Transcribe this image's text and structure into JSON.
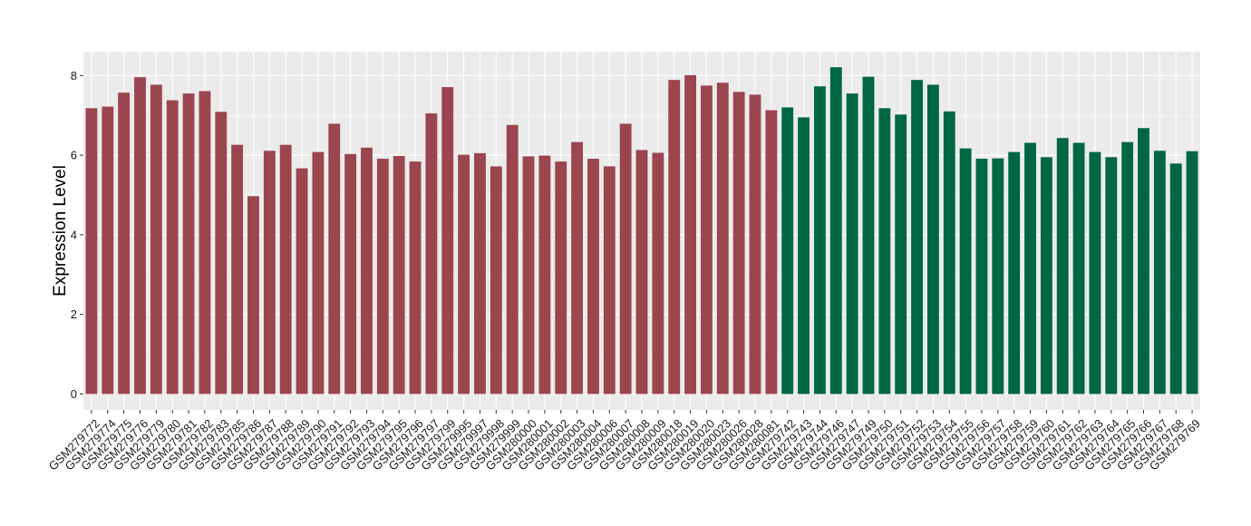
{
  "chart_data": {
    "type": "bar",
    "title": "",
    "xlabel": "",
    "ylabel": "Expression Level",
    "ylim": [
      -0.4,
      8.6
    ],
    "yticks": [
      0,
      2,
      4,
      6,
      8
    ],
    "grid": true,
    "legend": "none",
    "colors": {
      "group1": "#9b4550",
      "group2": "#006644",
      "panel": "#ebebeb"
    },
    "categories": [
      "GSM279772",
      "GSM279774",
      "GSM279775",
      "GSM279776",
      "GSM279779",
      "GSM279780",
      "GSM279781",
      "GSM279782",
      "GSM279783",
      "GSM279785",
      "GSM279786",
      "GSM279787",
      "GSM279788",
      "GSM279789",
      "GSM279790",
      "GSM279791",
      "GSM279792",
      "GSM279793",
      "GSM279794",
      "GSM279795",
      "GSM279796",
      "GSM279797",
      "GSM279799",
      "GSM279995",
      "GSM279997",
      "GSM279998",
      "GSM279999",
      "GSM280000",
      "GSM280001",
      "GSM280002",
      "GSM280003",
      "GSM280004",
      "GSM280006",
      "GSM280007",
      "GSM280008",
      "GSM280009",
      "GSM280018",
      "GSM280019",
      "GSM280020",
      "GSM280023",
      "GSM280026",
      "GSM280028",
      "GSM280081",
      "GSM279742",
      "GSM279743",
      "GSM279744",
      "GSM279746",
      "GSM279747",
      "GSM279749",
      "GSM279750",
      "GSM279751",
      "GSM279752",
      "GSM279753",
      "GSM279754",
      "GSM279755",
      "GSM279756",
      "GSM279757",
      "GSM279758",
      "GSM279759",
      "GSM279760",
      "GSM279761",
      "GSM279762",
      "GSM279763",
      "GSM279764",
      "GSM279765",
      "GSM279766",
      "GSM279767",
      "GSM279768",
      "GSM279769"
    ],
    "values": [
      7.18,
      7.22,
      7.57,
      7.96,
      7.77,
      7.38,
      7.55,
      7.61,
      7.09,
      6.26,
      4.97,
      6.11,
      6.26,
      5.67,
      6.08,
      6.79,
      6.03,
      6.19,
      5.91,
      5.98,
      5.84,
      7.05,
      7.71,
      6.01,
      6.05,
      5.72,
      6.76,
      5.97,
      5.99,
      5.84,
      6.33,
      5.91,
      5.72,
      6.79,
      6.13,
      6.06,
      7.89,
      8.01,
      7.75,
      7.82,
      7.59,
      7.52,
      7.13,
      7.2,
      6.95,
      7.73,
      8.21,
      7.55,
      7.97,
      7.18,
      7.02,
      7.89,
      7.77,
      7.1,
      6.17,
      5.91,
      5.92,
      6.08,
      6.31,
      5.95,
      6.43,
      6.31,
      6.08,
      5.95,
      6.33,
      6.68,
      6.11,
      5.79,
      6.1
    ],
    "groups": [
      1,
      1,
      1,
      1,
      1,
      1,
      1,
      1,
      1,
      1,
      1,
      1,
      1,
      1,
      1,
      1,
      1,
      1,
      1,
      1,
      1,
      1,
      1,
      1,
      1,
      1,
      1,
      1,
      1,
      1,
      1,
      1,
      1,
      1,
      1,
      1,
      1,
      1,
      1,
      1,
      1,
      1,
      1,
      2,
      2,
      2,
      2,
      2,
      2,
      2,
      2,
      2,
      2,
      2,
      2,
      2,
      2,
      2,
      2,
      2,
      2,
      2,
      2,
      2,
      2,
      2,
      2,
      2,
      2
    ]
  }
}
